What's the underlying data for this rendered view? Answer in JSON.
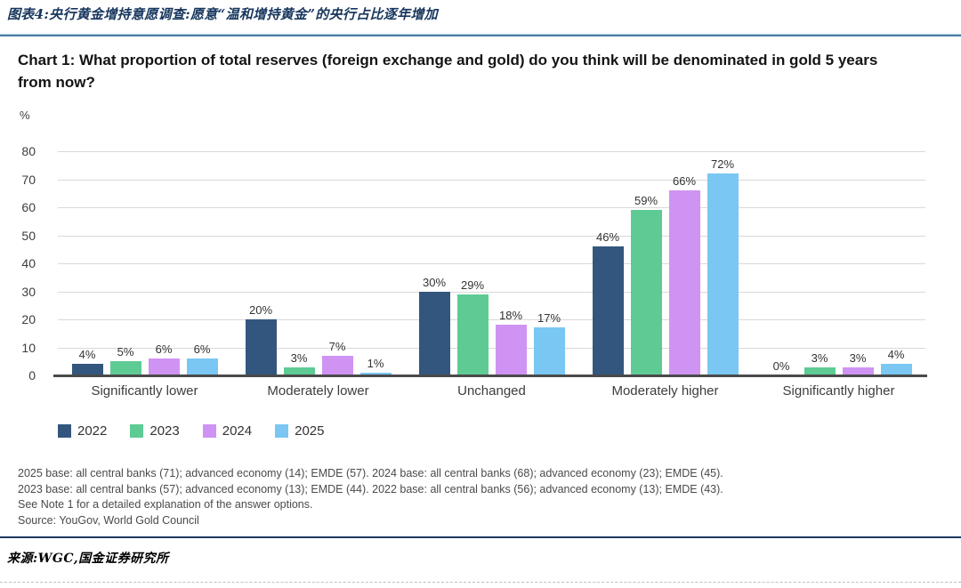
{
  "figure_header": {
    "title": "图表4:央行黄金增持意愿调查:愿意“温和增持黄金”的央行占比逐年增加"
  },
  "chart_data": {
    "type": "bar",
    "title": "Chart 1: What proportion of total reserves (foreign exchange and gold) do you think will be denominated in gold 5 years from now?",
    "ylabel": "%",
    "ylim": [
      0,
      80
    ],
    "ytick_step": 10,
    "grid": "horizontal",
    "legend_position": "bottom-left",
    "value_label_suffix": "%",
    "categories": [
      "Significantly lower",
      "Moderately lower",
      "Unchanged",
      "Moderately higher",
      "Significantly higher"
    ],
    "series": [
      {
        "name": "2022",
        "color": "#33567e",
        "values": [
          4,
          20,
          30,
          46,
          0
        ]
      },
      {
        "name": "2023",
        "color": "#5ecb94",
        "values": [
          5,
          3,
          29,
          59,
          3
        ]
      },
      {
        "name": "2024",
        "color": "#cf93f3",
        "values": [
          6,
          7,
          18,
          66,
          3
        ]
      },
      {
        "name": "2025",
        "color": "#79c7f2",
        "values": [
          6,
          1,
          17,
          72,
          4
        ]
      }
    ]
  },
  "footnotes": [
    "2025 base: all central banks (71); advanced economy (14); EMDE (57). 2024 base: all central banks (68); advanced economy (23); EMDE (45).",
    "2023 base: all central banks (57); advanced economy (13); EMDE (44). 2022 base: all central banks (56); advanced economy (13); EMDE (43).",
    "See Note 1 for a detailed explanation of the answer options.",
    "Source: YouGov, World Gold Council"
  ],
  "footer": {
    "source_note": "来源:WGC,国金证券研究所"
  },
  "colors": {
    "header_navy": "#17365d",
    "top_rule_blue": "#4d7fa6",
    "gridline_gray": "#d9d9d9",
    "axis_gray": "#4a4a4a"
  }
}
